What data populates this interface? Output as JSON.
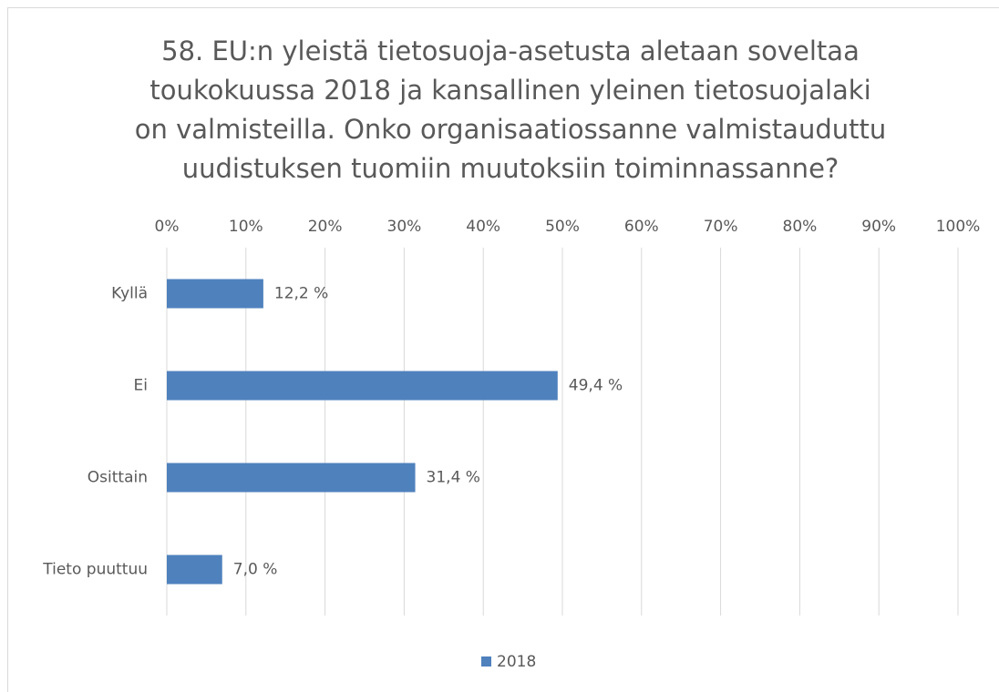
{
  "chart_data": {
    "type": "barh",
    "title": [
      "58. EU:n yleistä tietosuoja-asetusta aletaan soveltaa",
      "toukokuussa 2018 ja kansallinen yleinen tietosuojalaki",
      "on valmisteilla. Onko organisaatiossanne valmistauduttu",
      "uudistuksen tuomiin muutoksiin toiminnassanne?"
    ],
    "categories": [
      "Kyllä",
      "Ei",
      "Osittain",
      "Tieto puuttuu"
    ],
    "series": [
      {
        "name": "2018",
        "color": "#4f81bd",
        "values": [
          12.2,
          49.4,
          31.4,
          7.0
        ],
        "value_labels": [
          "12,2 %",
          "49,4 %",
          "31,4 %",
          "7,0 %"
        ]
      }
    ],
    "xlim": [
      0,
      100
    ],
    "xticks": [
      {
        "value": 0,
        "label": "0%"
      },
      {
        "value": 10,
        "label": "10%"
      },
      {
        "value": 20,
        "label": "20%"
      },
      {
        "value": 30,
        "label": "30%"
      },
      {
        "value": 40,
        "label": "40%"
      },
      {
        "value": 50,
        "label": "50%"
      },
      {
        "value": 60,
        "label": "60%"
      },
      {
        "value": 70,
        "label": "70%"
      },
      {
        "value": 80,
        "label": "80%"
      },
      {
        "value": 90,
        "label": "90%"
      },
      {
        "value": 100,
        "label": "100%"
      }
    ],
    "grid": true,
    "legend": "bottom"
  }
}
